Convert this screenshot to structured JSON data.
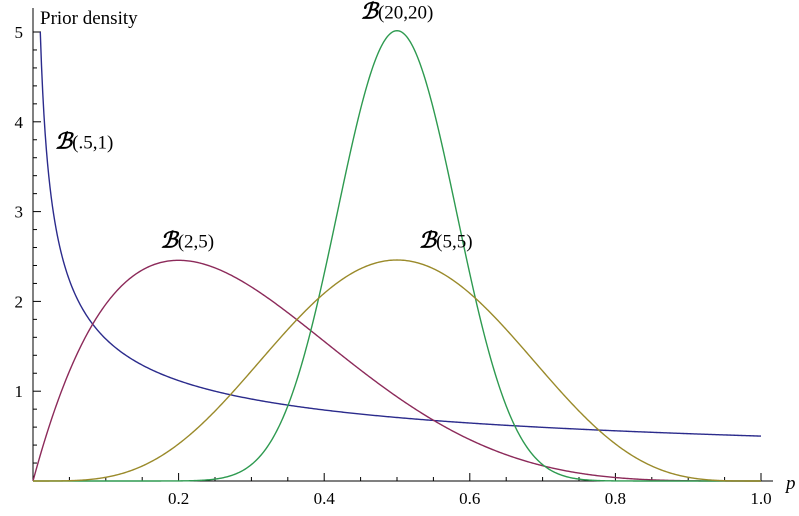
{
  "chart_data": {
    "type": "line",
    "title": "",
    "ylabel": "Prior density",
    "xlabel": "p",
    "xlim": [
      0,
      1
    ],
    "ylim": [
      0,
      5.05
    ],
    "x_ticks": [
      "0.2",
      "0.4",
      "0.6",
      "0.8",
      "1.0"
    ],
    "y_ticks": [
      "1",
      "2",
      "3",
      "4",
      "5"
    ],
    "grid": false,
    "legend": "none",
    "series": [
      {
        "name": "ℬ(.5,1)",
        "label_cal": "ℬ",
        "label_params": "(.5,1)",
        "alpha": 0.5,
        "beta": 1,
        "color": "#2b2b8c",
        "label_at": [
          0.03,
          3.7
        ]
      },
      {
        "name": "ℬ(2,5)",
        "label_cal": "ℬ",
        "label_params": "(2,5)",
        "alpha": 2,
        "beta": 5,
        "color": "#8c2a5a",
        "label_at": [
          0.175,
          2.6
        ]
      },
      {
        "name": "ℬ(20,20)",
        "label_cal": "ℬ",
        "label_params": "(20,20)",
        "alpha": 20,
        "beta": 20,
        "color": "#2e9a50",
        "label_at": [
          0.5,
          5.15
        ]
      },
      {
        "name": "ℬ(5,5)",
        "label_cal": "ℬ",
        "label_params": "(5,5)",
        "alpha": 5,
        "beta": 5,
        "color": "#9a8a2a",
        "label_at": [
          0.53,
          2.6
        ]
      }
    ]
  }
}
